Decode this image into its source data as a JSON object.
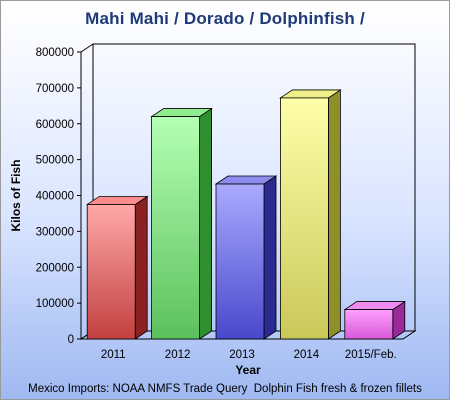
{
  "chart_data": {
    "type": "bar",
    "title": "Mahi Mahi / Dorado / Dolphinfish /",
    "xlabel": "Year",
    "ylabel": "Kilos of Fish",
    "footnote": "Mexico Imports: NOAA NMFS Trade Query  Dolphin Fish fresh & frozen fillets",
    "categories": [
      "2011",
      "2012",
      "2013",
      "2014",
      "2015/Feb."
    ],
    "values": [
      375000,
      620000,
      432000,
      672000,
      82000
    ],
    "ylim": [
      0,
      800000
    ],
    "yticks": [
      0,
      100000,
      200000,
      300000,
      400000,
      500000,
      600000,
      700000,
      800000
    ],
    "ytick_labels": [
      "0",
      "100000",
      "200000",
      "300000",
      "400000",
      "500000",
      "600000",
      "700000",
      "800000"
    ],
    "grid": false,
    "legend": "none",
    "bar_colors": [
      {
        "light": "#ffa8a8",
        "dark": "#c24040",
        "side": "#8a2222",
        "top": "#ff8c8c"
      },
      {
        "light": "#b4ffb4",
        "dark": "#5cc05c",
        "side": "#2f8f2f",
        "top": "#8fec8f"
      },
      {
        "light": "#aaaaff",
        "dark": "#4848cc",
        "side": "#2a2a90",
        "top": "#8c8cf0"
      },
      {
        "light": "#ffffaa",
        "dark": "#c8c85a",
        "side": "#8f8f2a",
        "top": "#f0f08a"
      },
      {
        "light": "#ffa0ff",
        "dark": "#d858d8",
        "side": "#9a2a9a",
        "top": "#f08cf0"
      }
    ]
  }
}
